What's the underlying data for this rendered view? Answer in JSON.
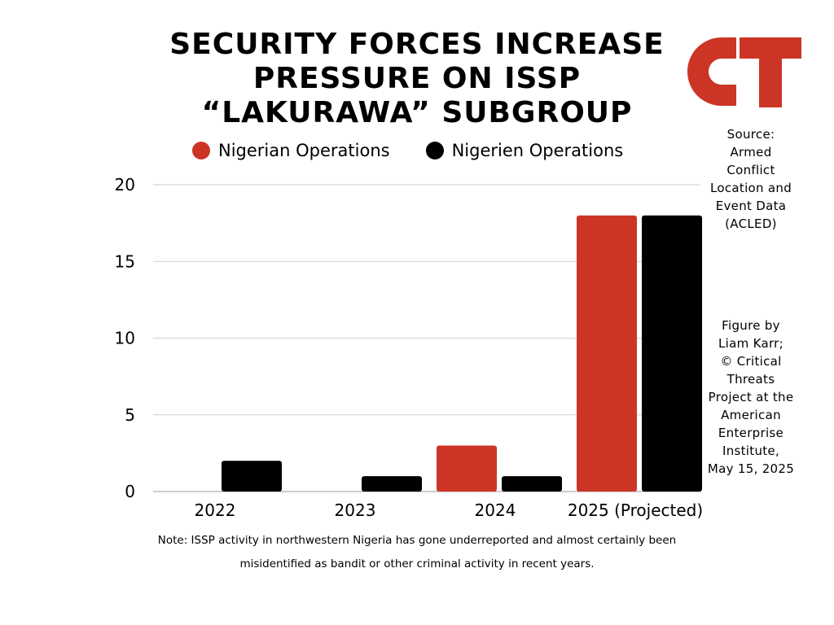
{
  "title_lines": [
    "SECURITY FORCES INCREASE",
    "PRESSURE ON ISSP",
    "“LAKURAWA” SUBGROUP"
  ],
  "logo": {
    "text": "CT",
    "color": "#cc3526"
  },
  "legend": [
    {
      "label": "Nigerian Operations",
      "color": "#cc3526"
    },
    {
      "label": "Nigerien Operations",
      "color": "#000000"
    }
  ],
  "source_lines": [
    "Source:",
    "Armed",
    "Conflict",
    "Location and",
    "Event Data",
    "(ACLED)"
  ],
  "credit_lines": [
    "Figure by",
    "Liam Karr;",
    "© Critical",
    "Threats",
    "Project at the",
    "American",
    "Enterprise",
    "Institute,",
    "May 15, 2025"
  ],
  "note_lines": [
    "Note: ISSP activity in northwestern Nigeria has gone underreported and almost certainly been",
    "misidentified as bandit or other criminal activity in recent years."
  ],
  "chart_data": {
    "type": "bar",
    "categories": [
      "2022",
      "2023",
      "2024",
      "2025 (Projected)"
    ],
    "series": [
      {
        "name": "Nigerian Operations",
        "color": "#cc3526",
        "values": [
          0,
          0,
          3,
          18
        ]
      },
      {
        "name": "Nigerien Operations",
        "color": "#000000",
        "values": [
          2,
          1,
          1,
          18
        ]
      }
    ],
    "yticks": [
      0,
      5,
      10,
      15,
      20
    ],
    "ylim": [
      0,
      20
    ],
    "grid": true,
    "legend_position": "top"
  }
}
